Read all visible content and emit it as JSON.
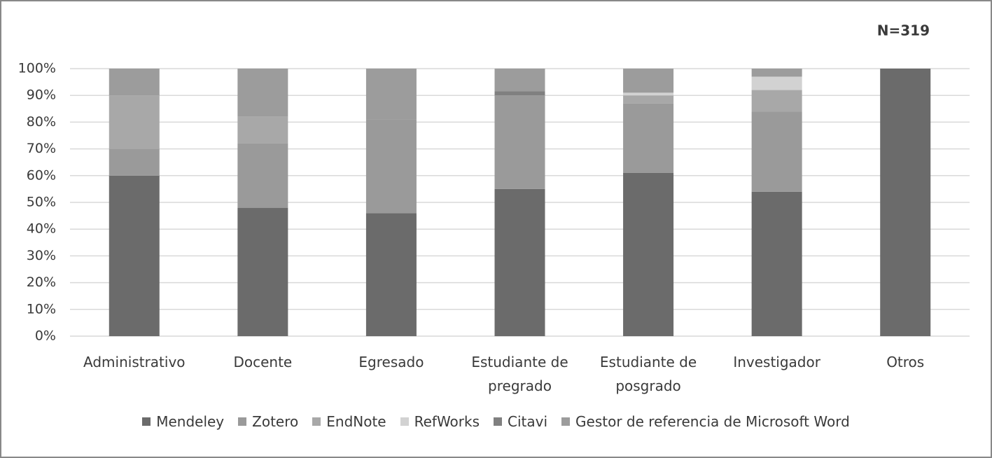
{
  "chart_data": {
    "type": "stacked_bar",
    "annotation": "N=319",
    "categories": [
      "Administrativo",
      "Docente",
      "Egresado",
      "Estudiante de pregrado",
      "Estudiante de posgrado",
      "Investigador",
      "Otros"
    ],
    "series": [
      {
        "name": "Mendeley",
        "color": "#6b6b6b",
        "values": [
          60,
          48,
          46,
          55,
          61,
          54,
          100
        ]
      },
      {
        "name": "Zotero",
        "color": "#9a9a9a",
        "values": [
          10,
          24,
          35,
          35,
          26,
          30,
          0
        ]
      },
      {
        "name": "EndNote",
        "color": "#a8a8a8",
        "values": [
          20,
          10,
          0,
          0,
          3,
          8,
          0
        ]
      },
      {
        "name": "RefWorks",
        "color": "#d2d2d2",
        "values": [
          0,
          0,
          0,
          0,
          1,
          5,
          0
        ]
      },
      {
        "name": "Citavi",
        "color": "#808080",
        "values": [
          0,
          0,
          0,
          1.5,
          0,
          0,
          0
        ]
      },
      {
        "name": "Gestor de referencia de Microsoft Word",
        "color": "#9c9c9c",
        "values": [
          10,
          18,
          19,
          8.5,
          9,
          3,
          0
        ]
      }
    ],
    "ylim": [
      0,
      100
    ],
    "yticks": [
      {
        "value": 0,
        "label": "0%"
      },
      {
        "value": 10,
        "label": "10%"
      },
      {
        "value": 20,
        "label": "20%"
      },
      {
        "value": 30,
        "label": "30%"
      },
      {
        "value": 40,
        "label": "40%"
      },
      {
        "value": 50,
        "label": "50%"
      },
      {
        "value": 60,
        "label": "60%"
      },
      {
        "value": 70,
        "label": "70%"
      },
      {
        "value": 80,
        "label": "80%"
      },
      {
        "value": 90,
        "label": "90%"
      },
      {
        "value": 100,
        "label": "100%"
      }
    ],
    "grid": true
  }
}
